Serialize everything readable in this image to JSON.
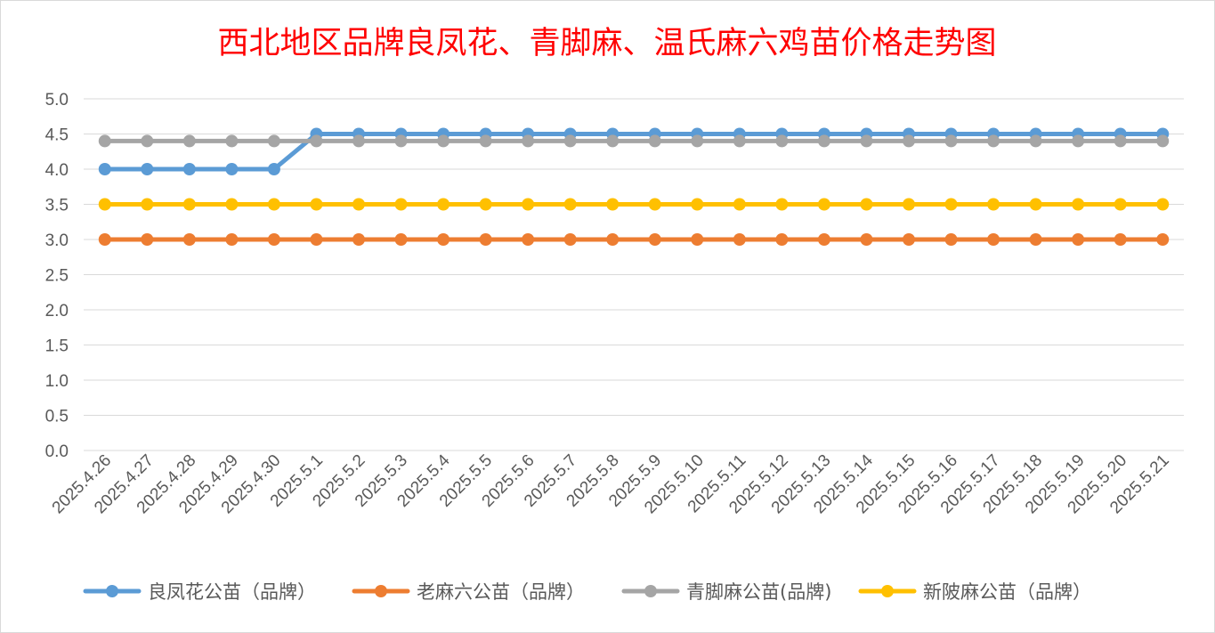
{
  "chart_data": {
    "type": "line",
    "title": "西北地区品牌良凤花、青脚麻、温氏麻六鸡苗价格走势图",
    "xlabel": "",
    "ylabel": "",
    "ylim": [
      0,
      5
    ],
    "y_ticks": [
      "0.0",
      "0.5",
      "1.0",
      "1.5",
      "2.0",
      "2.5",
      "3.0",
      "3.5",
      "4.0",
      "4.5",
      "5.0"
    ],
    "grid": true,
    "legend_position": "bottom",
    "categories": [
      "2025.4.26",
      "2025.4.27",
      "2025.4.28",
      "2025.4.29",
      "2025.4.30",
      "2025.5.1",
      "2025.5.2",
      "2025.5.3",
      "2025.5.4",
      "2025.5.5",
      "2025.5.6",
      "2025.5.7",
      "2025.5.8",
      "2025.5.9",
      "2025.5.10",
      "2025.5.11",
      "2025.5.12",
      "2025.5.13",
      "2025.5.14",
      "2025.5.15",
      "2025.5.16",
      "2025.5.17",
      "2025.5.18",
      "2025.5.19",
      "2025.5.20",
      "2025.5.21"
    ],
    "series": [
      {
        "name": "良凤花公苗（品牌）",
        "color": "#5B9BD5",
        "values": [
          4.0,
          4.0,
          4.0,
          4.0,
          4.0,
          4.5,
          4.5,
          4.5,
          4.5,
          4.5,
          4.5,
          4.5,
          4.5,
          4.5,
          4.5,
          4.5,
          4.5,
          4.5,
          4.5,
          4.5,
          4.5,
          4.5,
          4.5,
          4.5,
          4.5,
          4.5
        ]
      },
      {
        "name": "老麻六公苗（品牌）",
        "color": "#ED7D31",
        "values": [
          3.0,
          3.0,
          3.0,
          3.0,
          3.0,
          3.0,
          3.0,
          3.0,
          3.0,
          3.0,
          3.0,
          3.0,
          3.0,
          3.0,
          3.0,
          3.0,
          3.0,
          3.0,
          3.0,
          3.0,
          3.0,
          3.0,
          3.0,
          3.0,
          3.0,
          3.0
        ]
      },
      {
        "name": "青脚麻公苗(品牌)",
        "color": "#A5A5A5",
        "values": [
          4.4,
          4.4,
          4.4,
          4.4,
          4.4,
          4.4,
          4.4,
          4.4,
          4.4,
          4.4,
          4.4,
          4.4,
          4.4,
          4.4,
          4.4,
          4.4,
          4.4,
          4.4,
          4.4,
          4.4,
          4.4,
          4.4,
          4.4,
          4.4,
          4.4,
          4.4
        ]
      },
      {
        "name": "新陂麻公苗（品牌）",
        "color": "#FFC000",
        "values": [
          3.5,
          3.5,
          3.5,
          3.5,
          3.5,
          3.5,
          3.5,
          3.5,
          3.5,
          3.5,
          3.5,
          3.5,
          3.5,
          3.5,
          3.5,
          3.5,
          3.5,
          3.5,
          3.5,
          3.5,
          3.5,
          3.5,
          3.5,
          3.5,
          3.5,
          3.5
        ]
      }
    ],
    "colors": {
      "title": "#FF0000",
      "grid": "#D9D9D9",
      "tick_text": "#595959",
      "border": "#D9D9D9"
    }
  }
}
